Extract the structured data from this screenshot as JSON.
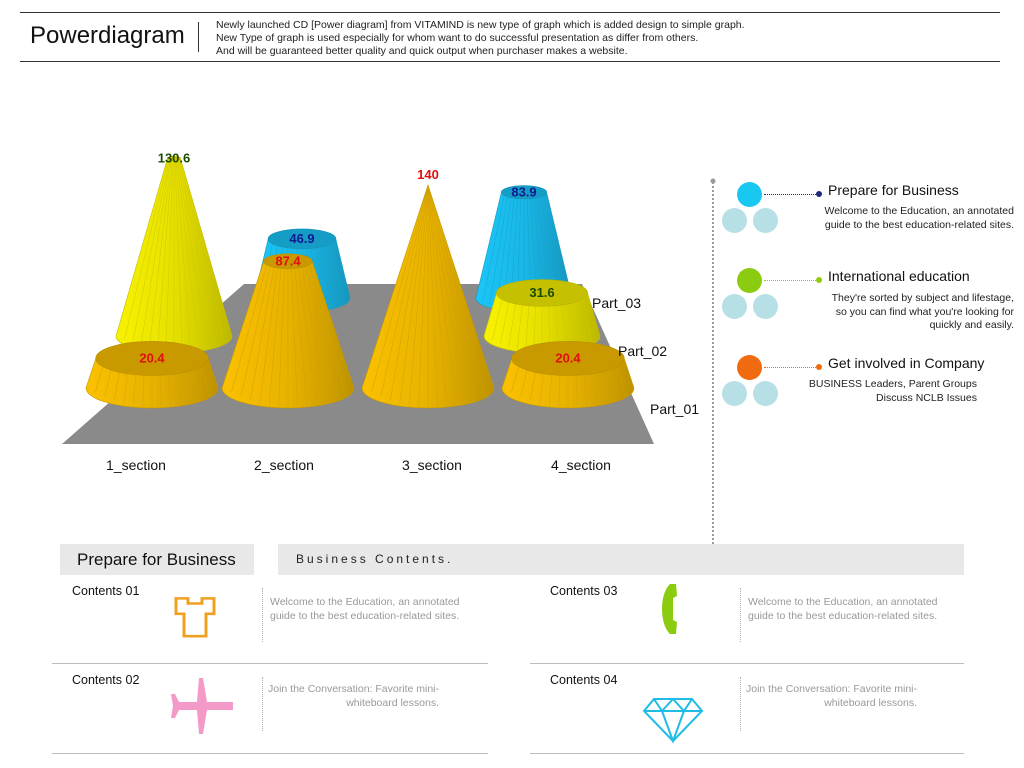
{
  "header": {
    "brand": "Powerdiagram",
    "desc": [
      "Newly launched CD [Power diagram] from VITAMIND is new type of graph which is added design to simple graph.",
      "New Type of graph is used especially for whom want to do successful presentation as differ from others.",
      "And will be guaranteed better quality and quick output when purchaser makes a website."
    ]
  },
  "chart_data": {
    "type": "bar",
    "style": "3d-cone",
    "categories": [
      "1_section",
      "2_section",
      "3_section",
      "4_section"
    ],
    "series": [
      {
        "name": "Part_01",
        "values": [
          20.4,
          87.4,
          140,
          20.4
        ],
        "color": "#e8b300",
        "label_color": "#e01010"
      },
      {
        "name": "Part_02",
        "values": [
          130.6,
          null,
          null,
          31.6
        ],
        "color": "#e6e000",
        "label_color": "#1a4a00"
      },
      {
        "name": "Part_03",
        "values": [
          null,
          46.9,
          null,
          83.9
        ],
        "color": "#19b7e6",
        "label_color": "#101a90"
      }
    ],
    "data_labels": [
      "130.6",
      "87.4",
      "46.9",
      "140",
      "83.9",
      "31.6",
      "20.4",
      "20.4"
    ],
    "grid": false
  },
  "legend": [
    {
      "title": "Prepare for Business",
      "desc": [
        "Welcome to the Education, an annotated",
        "guide to the best education-related sites."
      ],
      "color": "#19c8f0",
      "dot": "#1a2a7a"
    },
    {
      "title": "International education",
      "desc": [
        "They're sorted by subject and lifestage,",
        "so you can find what you're looking for",
        "quickly and easily."
      ],
      "color": "#8ccc10",
      "dot": "#8ccc10"
    },
    {
      "title": "Get involved in Company",
      "desc": [
        "BUSINESS Leaders, Parent Groups",
        "Discuss NCLB Issues"
      ],
      "color": "#f06a10",
      "dot": "#f06a10"
    }
  ],
  "section": {
    "title": "Prepare for Business",
    "bar": "Business Contents."
  },
  "contents": [
    {
      "label": "Contents 01",
      "icon": "shirt-icon",
      "text": [
        "Welcome to the Education, an annotated",
        "guide to the best education-related sites."
      ],
      "align": "left",
      "color": "#f0a020"
    },
    {
      "label": "Contents 02",
      "icon": "airplane-icon",
      "text": [
        "Join the Conversation: Favorite mini-",
        "whiteboard lessons."
      ],
      "align": "right",
      "color": "#f39ac8"
    },
    {
      "label": "Contents 03",
      "icon": "phone-icon",
      "text": [
        "Welcome to the Education, an annotated",
        "guide to the best education-related sites."
      ],
      "align": "left",
      "color": "#8ccc10"
    },
    {
      "label": "Contents 04",
      "icon": "diamond-icon",
      "text": [
        "Join the Conversation: Favorite mini-",
        "whiteboard lessons."
      ],
      "align": "right",
      "color": "#20bce6"
    }
  ]
}
